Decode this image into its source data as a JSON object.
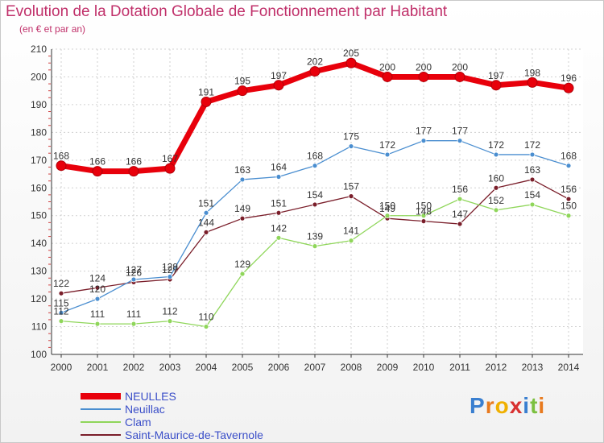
{
  "title": "Evolution de la Dotation Globale de Fonctionnement par Habitant",
  "subtitle": "(en € et par an)",
  "logo": {
    "text": "Proxiti"
  },
  "chart_data": {
    "type": "line",
    "x": [
      "2000",
      "2001",
      "2002",
      "2003",
      "2004",
      "2005",
      "2006",
      "2007",
      "2008",
      "2009",
      "2010",
      "2011",
      "2012",
      "2013",
      "2014"
    ],
    "ylim": [
      100,
      210
    ],
    "yticks": [
      "100",
      "110",
      "120",
      "130",
      "140",
      "150",
      "160",
      "170",
      "180",
      "190",
      "200",
      "210"
    ],
    "grid": true,
    "legend_position": "bottom-left",
    "series": [
      {
        "name": "NEULLES",
        "color": "#e8000b",
        "values": [
          168,
          166,
          166,
          167,
          191,
          195,
          197,
          202,
          205,
          200,
          200,
          200,
          197,
          198,
          196
        ]
      },
      {
        "name": "Neuillac",
        "color": "#4a8ed0",
        "values": [
          115,
          120,
          127,
          128,
          151,
          163,
          164,
          168,
          175,
          172,
          177,
          177,
          172,
          172,
          168
        ]
      },
      {
        "name": "Clam",
        "color": "#8fd65a",
        "values": [
          112,
          111,
          111,
          112,
          110,
          129,
          142,
          139,
          141,
          150,
          150,
          156,
          152,
          154,
          150
        ]
      },
      {
        "name": "Saint-Maurice-de-Tavernole",
        "color": "#7a1e2a",
        "values": [
          122,
          124,
          126,
          127,
          144,
          149,
          151,
          154,
          157,
          149,
          148,
          147,
          160,
          163,
          156
        ]
      }
    ]
  }
}
